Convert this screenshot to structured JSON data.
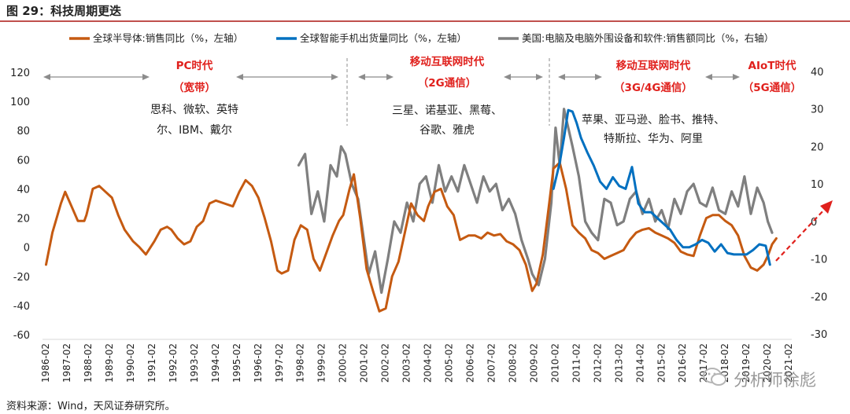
{
  "figure": {
    "title": "图 29：科技周期更迭",
    "source": "资料来源：Wind，天风证券研究所。",
    "watermark": "分析师徐彪"
  },
  "chart_data": {
    "type": "line",
    "title": "图 29：科技周期更迭",
    "y_left": {
      "ylim": [
        -60,
        120
      ],
      "ticks": [
        -60,
        -40,
        -20,
        0,
        20,
        40,
        60,
        80,
        100,
        120
      ],
      "labels": [
        "-60",
        "-40",
        "-20",
        "0",
        "20",
        "40",
        "60",
        "80",
        "100",
        "120"
      ]
    },
    "y_right": {
      "ylim": [
        -30,
        45
      ],
      "ticks": [
        -30,
        -20,
        -10,
        0,
        10,
        20,
        30,
        40
      ],
      "labels": [
        "-30",
        "-20",
        "-10",
        "0",
        "10",
        "20",
        "30",
        "40"
      ]
    },
    "x_ticks": [
      "1986-02",
      "1987-02",
      "1988-02",
      "1989-02",
      "1990-02",
      "1991-02",
      "1992-02",
      "1993-02",
      "1994-02",
      "1995-02",
      "1996-02",
      "1997-02",
      "1998-02",
      "1999-02",
      "2000-02",
      "2001-02",
      "2002-02",
      "2003-02",
      "2004-02",
      "2005-02",
      "2006-02",
      "2007-02",
      "2008-02",
      "2009-02",
      "2010-02",
      "2011-02",
      "2012-02",
      "2013-02",
      "2014-02",
      "2015-02",
      "2016-02",
      "2017-02",
      "2018-02",
      "2019-02",
      "2020-02",
      "2021-02"
    ],
    "x_year_range": [
      1986.08,
      2021.08
    ],
    "legend_position": "top",
    "series": [
      {
        "name": "全球半导体:销售同比（%，左轴）",
        "axis": "left",
        "color": "#c55a11",
        "x": [
          1986.1,
          1986.4,
          1986.8,
          1987.0,
          1987.3,
          1987.6,
          1987.9,
          1988.0,
          1988.3,
          1988.6,
          1988.9,
          1989.2,
          1989.5,
          1989.8,
          1990.2,
          1990.5,
          1990.8,
          1991.2,
          1991.5,
          1991.8,
          1992.0,
          1992.3,
          1992.6,
          1992.9,
          1993.2,
          1993.5,
          1993.8,
          1994.1,
          1994.5,
          1994.9,
          1995.2,
          1995.5,
          1995.8,
          1996.1,
          1996.4,
          1996.7,
          1997.0,
          1997.2,
          1997.5,
          1997.8,
          1998.1,
          1998.4,
          1998.7,
          1999.0,
          1999.3,
          1999.6,
          1999.9,
          2000.1,
          2000.4,
          2000.6,
          2000.9,
          2001.2,
          2001.5,
          2001.8,
          2002.1,
          2002.4,
          2002.7,
          2003.0,
          2003.3,
          2003.6,
          2003.9,
          2004.1,
          2004.4,
          2004.7,
          2005.0,
          2005.3,
          2005.6,
          2006.0,
          2006.3,
          2006.6,
          2006.9,
          2007.2,
          2007.5,
          2007.8,
          2008.1,
          2008.4,
          2008.7,
          2009.0,
          2009.2,
          2009.5,
          2009.8,
          2010.0,
          2010.3,
          2010.6,
          2010.9,
          2011.2,
          2011.5,
          2011.8,
          2012.1,
          2012.4,
          2012.7,
          2013.0,
          2013.3,
          2013.6,
          2013.9,
          2014.2,
          2014.5,
          2014.8,
          2015.1,
          2015.4,
          2015.7,
          2016.0,
          2016.3,
          2016.6,
          2016.9,
          2017.2,
          2017.5,
          2017.8,
          2018.1,
          2018.4,
          2018.7,
          2019.0,
          2019.3,
          2019.6,
          2019.9,
          2020.1,
          2020.3,
          2020.5
        ],
        "y": [
          -12,
          10,
          30,
          38,
          28,
          18,
          18,
          22,
          40,
          42,
          38,
          34,
          22,
          12,
          4,
          0,
          -5,
          4,
          12,
          14,
          12,
          6,
          2,
          4,
          14,
          18,
          30,
          32,
          30,
          28,
          38,
          46,
          42,
          34,
          20,
          4,
          -16,
          -18,
          -16,
          5,
          15,
          12,
          -8,
          -16,
          -4,
          8,
          18,
          22,
          40,
          50,
          20,
          -15,
          -30,
          -44,
          -42,
          -20,
          -10,
          10,
          30,
          22,
          18,
          28,
          38,
          40,
          28,
          22,
          5,
          8,
          8,
          6,
          10,
          8,
          9,
          4,
          2,
          -2,
          -12,
          -30,
          -25,
          -5,
          30,
          54,
          58,
          40,
          15,
          10,
          6,
          -2,
          -4,
          -8,
          -6,
          -4,
          -2,
          5,
          10,
          12,
          13,
          10,
          8,
          6,
          3,
          -3,
          -5,
          -6,
          8,
          20,
          22,
          22,
          18,
          15,
          8,
          -6,
          -14,
          -16,
          -12,
          -6,
          2,
          6
        ]
      },
      {
        "name": "全球智能手机出货量同比（%，左轴）",
        "axis": "left",
        "color": "#0070c0",
        "x": [
          2010.0,
          2010.3,
          2010.5,
          2010.7,
          2010.9,
          2011.1,
          2011.3,
          2011.6,
          2011.9,
          2012.2,
          2012.5,
          2012.8,
          2013.1,
          2013.4,
          2013.7,
          2014.0,
          2014.3,
          2014.6,
          2014.9,
          2015.2,
          2015.5,
          2015.8,
          2016.1,
          2016.4,
          2016.7,
          2017.0,
          2017.3,
          2017.6,
          2017.9,
          2018.2,
          2018.5,
          2018.8,
          2019.1,
          2019.4,
          2019.7,
          2020.0,
          2020.2
        ],
        "y": [
          40,
          58,
          75,
          94,
          93,
          85,
          75,
          65,
          56,
          45,
          40,
          48,
          42,
          40,
          55,
          30,
          24,
          24,
          20,
          16,
          12,
          5,
          0,
          0,
          2,
          5,
          3,
          -3,
          2,
          -4,
          -5,
          -5,
          -5,
          -2,
          2,
          1,
          -12
        ]
      },
      {
        "name": "美国:电脑及电脑外围设备和软件:销售额同比（%，右轴）",
        "axis": "right",
        "color": "#7f7f7f",
        "x": [
          1998.0,
          1998.3,
          1998.6,
          1998.9,
          1999.2,
          1999.5,
          1999.8,
          2000.0,
          2000.2,
          2000.5,
          2000.8,
          2001.1,
          2001.3,
          2001.6,
          2001.9,
          2002.2,
          2002.5,
          2002.8,
          2003.1,
          2003.4,
          2003.7,
          2004.0,
          2004.3,
          2004.6,
          2004.9,
          2005.2,
          2005.5,
          2005.8,
          2006.1,
          2006.4,
          2006.7,
          2007.0,
          2007.3,
          2007.6,
          2007.9,
          2008.2,
          2008.5,
          2008.8,
          2009.0,
          2009.3,
          2009.6,
          2009.9,
          2010.1,
          2010.3,
          2010.5,
          2010.7,
          2010.9,
          2011.2,
          2011.5,
          2011.8,
          2012.1,
          2012.4,
          2012.7,
          2013.0,
          2013.3,
          2013.6,
          2013.9,
          2014.2,
          2014.5,
          2014.8,
          2015.1,
          2015.4,
          2015.7,
          2016.0,
          2016.3,
          2016.6,
          2016.9,
          2017.2,
          2017.5,
          2017.8,
          2018.1,
          2018.4,
          2018.7,
          2019.0,
          2019.3,
          2019.6,
          2019.9,
          2020.1,
          2020.3
        ],
        "y": [
          15,
          18,
          2,
          8,
          0,
          15,
          12,
          20,
          18,
          10,
          6,
          -6,
          -14,
          -8,
          -19,
          -10,
          0,
          -3,
          5,
          0,
          10,
          12,
          5,
          15,
          8,
          12,
          8,
          15,
          10,
          5,
          12,
          8,
          10,
          3,
          6,
          2,
          -5,
          -10,
          -14,
          -17,
          -10,
          5,
          25,
          15,
          30,
          25,
          20,
          12,
          0,
          -3,
          -5,
          6,
          5,
          -1,
          0,
          6,
          8,
          2,
          6,
          0,
          3,
          -2,
          6,
          2,
          8,
          10,
          5,
          4,
          9,
          3,
          2,
          8,
          4,
          12,
          2,
          9,
          5,
          0,
          -3
        ]
      }
    ],
    "eras": [
      {
        "title": "PC时代",
        "subtitle": "（宽带）",
        "lines": [
          "思科、微软、英特",
          "尔、IBM、戴尔"
        ]
      },
      {
        "title": "移动互联网时代",
        "subtitle": "（2G通信）",
        "lines": [
          "三星、诺基亚、黑莓、",
          "谷歌、雅虎"
        ]
      },
      {
        "title": "移动互联网时代",
        "subtitle": "（3G/4G通信）",
        "lines": [
          "苹果、亚马逊、脸书、推特、",
          "特斯拉、华为、阿里"
        ]
      },
      {
        "title": "AIoT时代",
        "subtitle": "（5G通信）",
        "lines": []
      }
    ]
  }
}
